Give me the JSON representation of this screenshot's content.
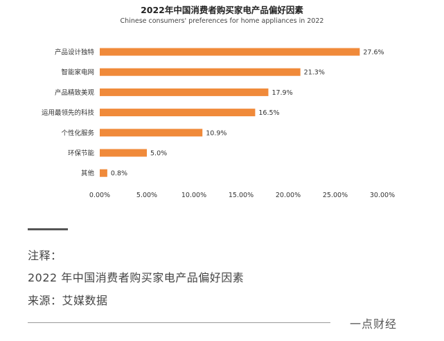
{
  "chart_data": {
    "type": "bar",
    "orientation": "horizontal",
    "title": "2022年中国消费者购买家电产品偏好因素",
    "subtitle": "Chinese consumers' preferences for home appliances in 2022",
    "categories": [
      "产品设计独特",
      "智能家电网",
      "产品精致美观",
      "运用最领先的科技",
      "个性化服务",
      "环保节能",
      "其他"
    ],
    "values": [
      27.6,
      21.3,
      17.9,
      16.5,
      10.9,
      5.0,
      0.8
    ],
    "value_labels": [
      "27.6%",
      "21.3%",
      "17.9%",
      "16.5%",
      "10.9%",
      "5.0%",
      "0.8%"
    ],
    "xlim": [
      0,
      30
    ],
    "x_ticks": [
      "0.00%",
      "5.00%",
      "10.00%",
      "15.00%",
      "20.00%",
      "25.00%",
      "30.00%"
    ],
    "bar_color": "#F08A3A",
    "grid": false,
    "legend": "none"
  },
  "notes": {
    "heading": "注释：",
    "text": "2022 年中国消费者购买家电产品偏好因素",
    "source": "来源：艾媒数据"
  },
  "brand": "一点财经"
}
